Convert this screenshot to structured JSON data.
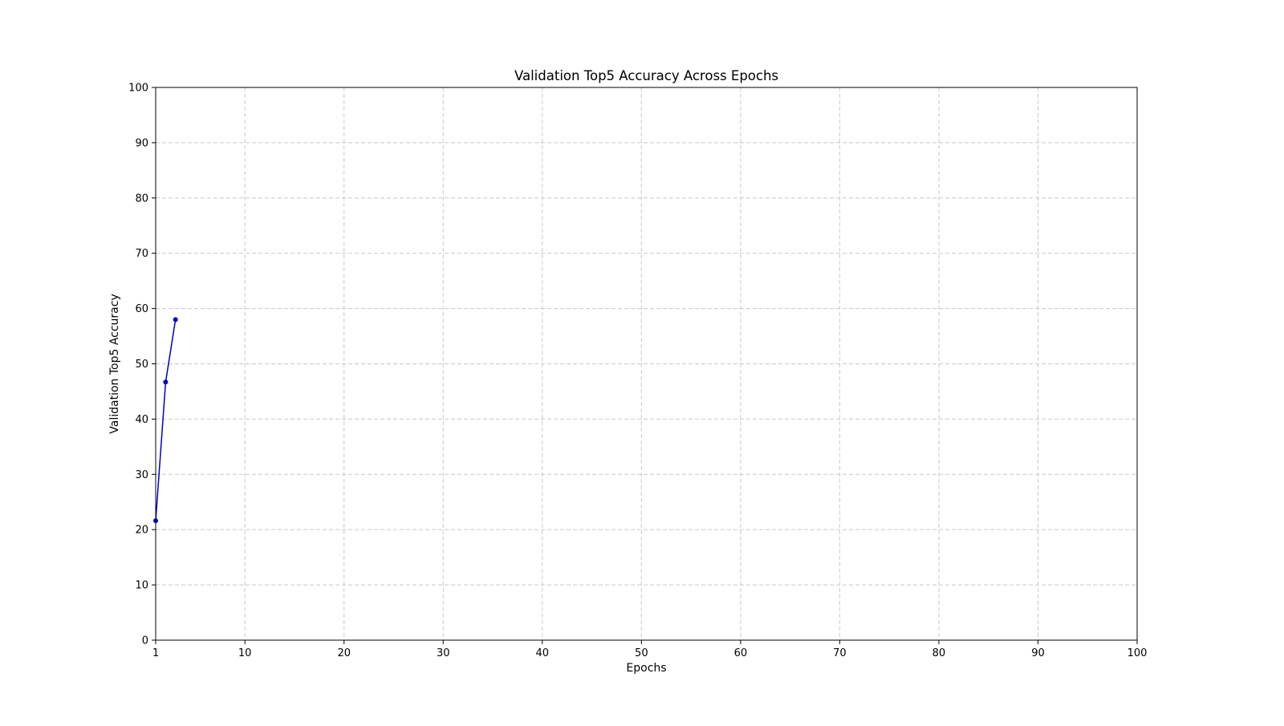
{
  "chart_data": {
    "type": "line",
    "title": "Validation Top5 Accuracy Across Epochs",
    "xlabel": "Epochs",
    "ylabel": "Validation Top5 Accuracy",
    "xlim": [
      1,
      100
    ],
    "ylim": [
      0,
      100
    ],
    "xticks": [
      1,
      10,
      20,
      30,
      40,
      50,
      60,
      70,
      80,
      90,
      100
    ],
    "yticks": [
      0,
      10,
      20,
      30,
      40,
      50,
      60,
      70,
      80,
      90,
      100
    ],
    "grid": true,
    "grid_style": "dashed",
    "legend": "none",
    "series": [
      {
        "color": "#0000cc",
        "marker": "circle",
        "x": [
          1,
          2,
          3
        ],
        "y": [
          21.6,
          46.7,
          58.0
        ]
      }
    ]
  }
}
